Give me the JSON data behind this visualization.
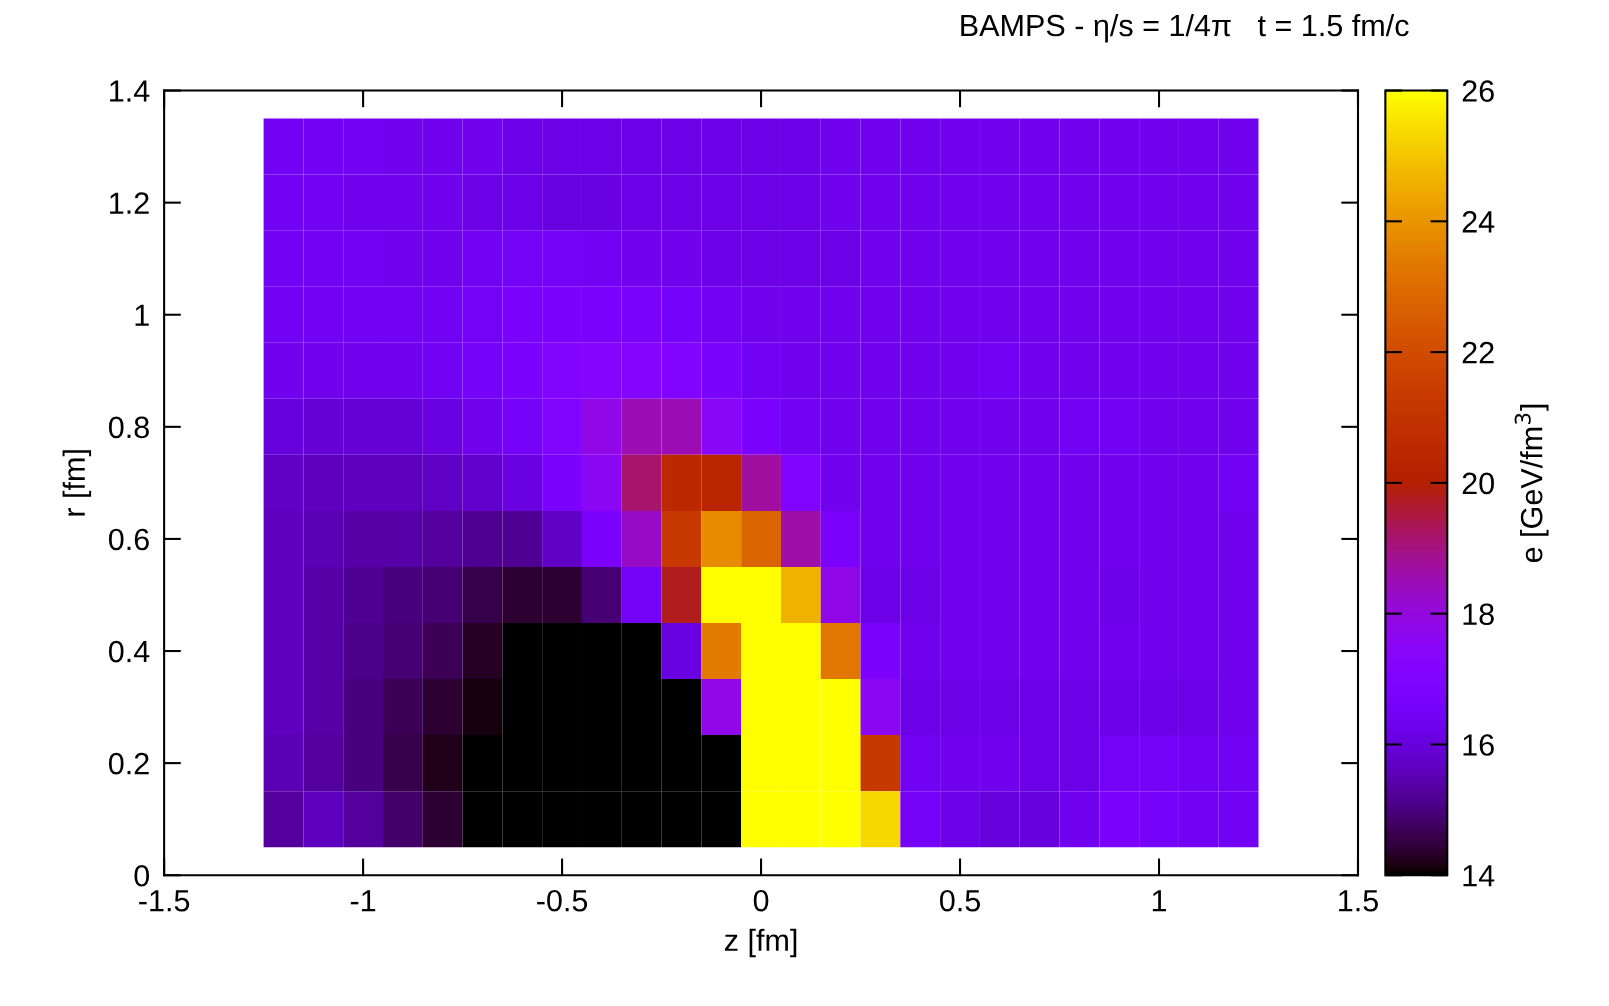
{
  "chart_data": {
    "type": "heatmap",
    "title": "BAMPS - η/s = 1/4π   t = 1.5 fm/c",
    "xlabel": "z [fm]",
    "ylabel": "r [fm]",
    "clabel": "e [GeV/fm$^{3}$]",
    "x": [
      -1.2,
      -1.1,
      -1.0,
      -0.9,
      -0.8,
      -0.7,
      -0.6,
      -0.5,
      -0.4,
      -0.3,
      -0.2,
      -0.1,
      0.0,
      0.1,
      0.2,
      0.3,
      0.4,
      0.5,
      0.6,
      0.7,
      0.8,
      0.9,
      1.0,
      1.1,
      1.2
    ],
    "y": [
      1.3,
      1.2,
      1.1,
      1.0,
      0.9,
      0.8,
      0.7,
      0.6,
      0.5,
      0.4,
      0.3,
      0.2,
      0.1
    ],
    "cells": [
      [
        16.4,
        16.4,
        16.4,
        16.3,
        16.3,
        16.3,
        16.2,
        16.2,
        16.2,
        16.2,
        16.2,
        16.2,
        16.2,
        16.2,
        16.3,
        16.3,
        16.3,
        16.3,
        16.3,
        16.3,
        16.3,
        16.3,
        16.3,
        16.3,
        16.3
      ],
      [
        16.4,
        16.4,
        16.3,
        16.3,
        16.3,
        16.2,
        16.2,
        16.1,
        16.1,
        16.2,
        16.2,
        16.2,
        16.2,
        16.2,
        16.3,
        16.3,
        16.3,
        16.3,
        16.3,
        16.3,
        16.3,
        16.3,
        16.3,
        16.3,
        16.3
      ],
      [
        16.4,
        16.4,
        16.4,
        16.3,
        16.3,
        16.4,
        16.5,
        16.5,
        16.4,
        16.3,
        16.3,
        16.2,
        16.2,
        16.2,
        16.2,
        16.3,
        16.3,
        16.3,
        16.3,
        16.3,
        16.3,
        16.3,
        16.3,
        16.3,
        16.3
      ],
      [
        16.4,
        16.4,
        16.4,
        16.4,
        16.4,
        16.5,
        16.8,
        16.8,
        16.8,
        16.7,
        16.6,
        16.4,
        16.3,
        16.3,
        16.3,
        16.3,
        16.3,
        16.3,
        16.3,
        16.3,
        16.3,
        16.3,
        16.3,
        16.3,
        16.3
      ],
      [
        16.3,
        16.3,
        16.3,
        16.3,
        16.4,
        16.6,
        16.8,
        17.0,
        17.2,
        17.2,
        17.0,
        16.7,
        16.4,
        16.3,
        16.3,
        16.3,
        16.3,
        16.3,
        16.4,
        16.3,
        16.3,
        16.3,
        16.3,
        16.3,
        16.3
      ],
      [
        16.0,
        15.9,
        15.9,
        15.9,
        16.1,
        16.3,
        16.6,
        17.0,
        17.8,
        18.5,
        18.5,
        17.5,
        16.8,
        16.4,
        16.3,
        16.3,
        16.3,
        16.3,
        16.3,
        16.3,
        16.4,
        16.4,
        16.3,
        16.3,
        16.3
      ],
      [
        15.7,
        15.6,
        15.6,
        15.6,
        15.7,
        15.8,
        16.1,
        16.8,
        17.6,
        19.2,
        20.5,
        20.3,
        18.7,
        17.0,
        16.3,
        16.3,
        16.3,
        16.3,
        16.3,
        16.3,
        16.3,
        16.3,
        16.3,
        16.3,
        16.4
      ],
      [
        15.6,
        15.5,
        15.4,
        15.4,
        15.3,
        15.2,
        15.2,
        15.7,
        16.8,
        18.3,
        21.3,
        23.8,
        22.8,
        18.6,
        16.8,
        16.3,
        16.3,
        16.3,
        16.3,
        16.3,
        16.3,
        16.3,
        16.3,
        16.3,
        16.3
      ],
      [
        15.6,
        15.4,
        15.2,
        15.0,
        14.9,
        14.6,
        14.4,
        14.4,
        14.9,
        16.5,
        19.8,
        26,
        26,
        24.6,
        17.8,
        16.2,
        16.2,
        16.3,
        16.3,
        16.3,
        16.3,
        16.2,
        16.3,
        16.3,
        16.3
      ],
      [
        15.6,
        15.4,
        15.1,
        14.9,
        14.7,
        14.3,
        14,
        14,
        14,
        14,
        16.1,
        23.4,
        26,
        26,
        23.3,
        16.8,
        16.3,
        16.3,
        16.3,
        16.3,
        16.3,
        16.3,
        16.3,
        16.3,
        16.3
      ],
      [
        15.6,
        15.4,
        15.0,
        14.7,
        14.4,
        14.1,
        14,
        14,
        14,
        14,
        14,
        17.8,
        26,
        26,
        26,
        17.6,
        16.2,
        16.2,
        16.2,
        16.2,
        16.2,
        16.2,
        16.2,
        16.2,
        16.3
      ],
      [
        15.5,
        15.3,
        15.0,
        14.6,
        14.2,
        14,
        14,
        14,
        14,
        14,
        14,
        14,
        26,
        26,
        26,
        21.3,
        16.4,
        16.3,
        16.3,
        16.2,
        16.2,
        16.5,
        16.5,
        16.4,
        16.4
      ],
      [
        15.3,
        15.6,
        15.3,
        14.8,
        14.4,
        14,
        14,
        14,
        14,
        14,
        14,
        14,
        26,
        26,
        26,
        25.3,
        16.5,
        16.2,
        16.0,
        16.0,
        16.3,
        16.8,
        16.6,
        16.4,
        16.4
      ]
    ],
    "xlim": [
      -1.5,
      1.5
    ],
    "xticks": [
      -1.5,
      -1,
      -0.5,
      0,
      0.5,
      1,
      1.5
    ],
    "ylim": [
      0,
      1.4
    ],
    "yticks": [
      0,
      0.2,
      0.4,
      0.6,
      0.8,
      1,
      1.2,
      1.4
    ],
    "clim": [
      14,
      26
    ],
    "cticks": [
      14,
      16,
      18,
      20,
      22,
      24,
      26
    ]
  }
}
